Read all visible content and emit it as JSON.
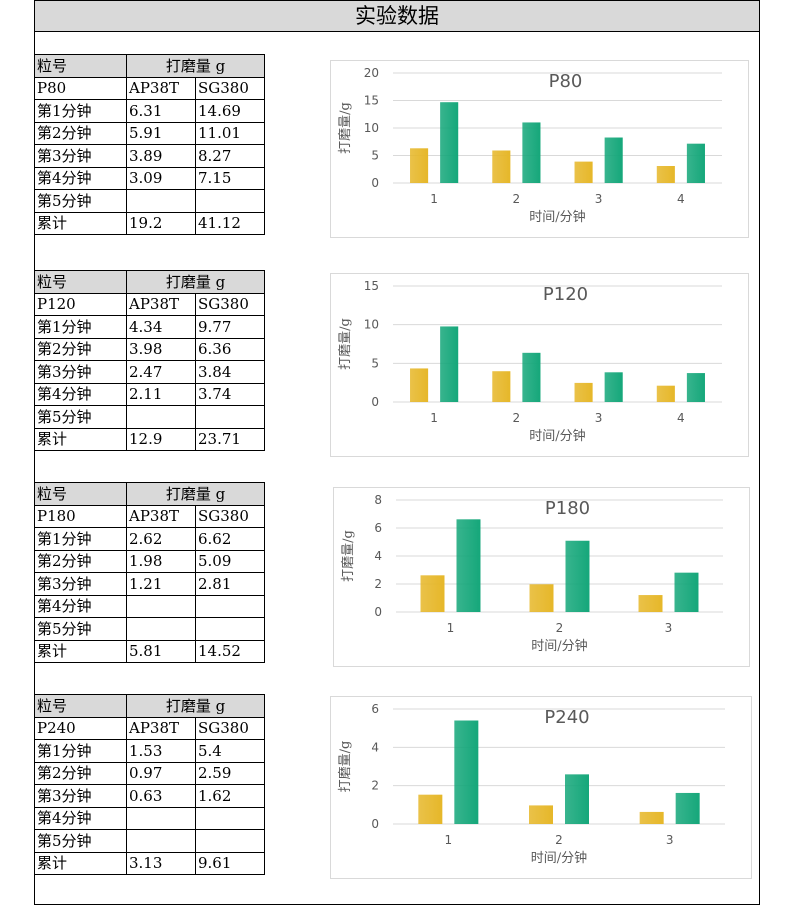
{
  "page_title": "实验数据",
  "colors": {
    "ap38t": "#e6b729",
    "sg380": "#15a77a",
    "grid": "#d9d9d9",
    "header_bg": "#d9d9d9"
  },
  "tables": [
    {
      "head_left": "粒号",
      "head_right": "打磨量 g",
      "grit": "P80",
      "col1": "AP38T",
      "col2": "SG380",
      "rows": [
        [
          "第1分钟",
          "6.31",
          "14.69"
        ],
        [
          "第2分钟",
          "5.91",
          "11.01"
        ],
        [
          "第3分钟",
          "3.89",
          "8.27"
        ],
        [
          "第4分钟",
          "3.09",
          "7.15"
        ],
        [
          "第5分钟",
          "",
          ""
        ],
        [
          "累计",
          "19.2",
          "41.12"
        ]
      ]
    },
    {
      "head_left": "粒号",
      "head_right": "打磨量 g",
      "grit": "P120",
      "col1": "AP38T",
      "col2": "SG380",
      "rows": [
        [
          "第1分钟",
          "4.34",
          "9.77"
        ],
        [
          "第2分钟",
          "3.98",
          "6.36"
        ],
        [
          "第3分钟",
          "2.47",
          "3.84"
        ],
        [
          "第4分钟",
          "2.11",
          "3.74"
        ],
        [
          "第5分钟",
          "",
          ""
        ],
        [
          "累计",
          "12.9",
          "23.71"
        ]
      ]
    },
    {
      "head_left": "粒号",
      "head_right": "打磨量 g",
      "grit": "P180",
      "col1": "AP38T",
      "col2": "SG380",
      "rows": [
        [
          "第1分钟",
          "2.62",
          "6.62"
        ],
        [
          "第2分钟",
          "1.98",
          "5.09"
        ],
        [
          "第3分钟",
          "1.21",
          "2.81"
        ],
        [
          "第4分钟",
          "",
          ""
        ],
        [
          "第5分钟",
          "",
          ""
        ],
        [
          "累计",
          "5.81",
          "14.52"
        ]
      ]
    },
    {
      "head_left": "粒号",
      "head_right": "打磨量 g",
      "grit": "P240",
      "col1": "AP38T",
      "col2": "SG380",
      "rows": [
        [
          "第1分钟",
          "1.53",
          "5.4"
        ],
        [
          "第2分钟",
          "0.97",
          "2.59"
        ],
        [
          "第3分钟",
          "0.63",
          "1.62"
        ],
        [
          "第4分钟",
          "",
          ""
        ],
        [
          "第5分钟",
          "",
          ""
        ],
        [
          "累计",
          "3.13",
          "9.61"
        ]
      ]
    }
  ],
  "chart_data": [
    {
      "type": "bar",
      "title": "P80",
      "xlabel": "时间/分钟",
      "ylabel": "打磨量/g",
      "categories": [
        "1",
        "2",
        "3",
        "4"
      ],
      "ylim": [
        0,
        20
      ],
      "yticks": [
        0,
        5,
        10,
        15,
        20
      ],
      "series": [
        {
          "values": [
            6.31,
            5.91,
            3.89,
            3.09
          ],
          "color": "#e6b729"
        },
        {
          "values": [
            14.69,
            11.01,
            8.27,
            7.15
          ],
          "color": "#15a77a"
        }
      ]
    },
    {
      "type": "bar",
      "title": "P120",
      "xlabel": "时间/分钟",
      "ylabel": "打磨量/g",
      "categories": [
        "1",
        "2",
        "3",
        "4"
      ],
      "ylim": [
        0,
        15
      ],
      "yticks": [
        0,
        5,
        10,
        15
      ],
      "series": [
        {
          "values": [
            4.34,
            3.98,
            2.47,
            2.11
          ],
          "color": "#e6b729"
        },
        {
          "values": [
            9.77,
            6.36,
            3.84,
            3.74
          ],
          "color": "#15a77a"
        }
      ]
    },
    {
      "type": "bar",
      "title": "P180",
      "xlabel": "时间/分钟",
      "ylabel": "打磨量/g",
      "categories": [
        "1",
        "2",
        "3"
      ],
      "ylim": [
        0,
        8
      ],
      "yticks": [
        0,
        2,
        4,
        6,
        8
      ],
      "series": [
        {
          "values": [
            2.62,
            1.98,
            1.21
          ],
          "color": "#e6b729"
        },
        {
          "values": [
            6.62,
            5.09,
            2.81
          ],
          "color": "#15a77a"
        }
      ]
    },
    {
      "type": "bar",
      "title": "P240",
      "xlabel": "时间/分钟",
      "ylabel": "打磨量/g",
      "categories": [
        "1",
        "2",
        "3"
      ],
      "ylim": [
        0,
        6
      ],
      "yticks": [
        0,
        2,
        4,
        6
      ],
      "series": [
        {
          "values": [
            1.53,
            0.97,
            0.63
          ],
          "color": "#e6b729"
        },
        {
          "values": [
            5.4,
            2.59,
            1.62
          ],
          "color": "#15a77a"
        }
      ]
    }
  ]
}
